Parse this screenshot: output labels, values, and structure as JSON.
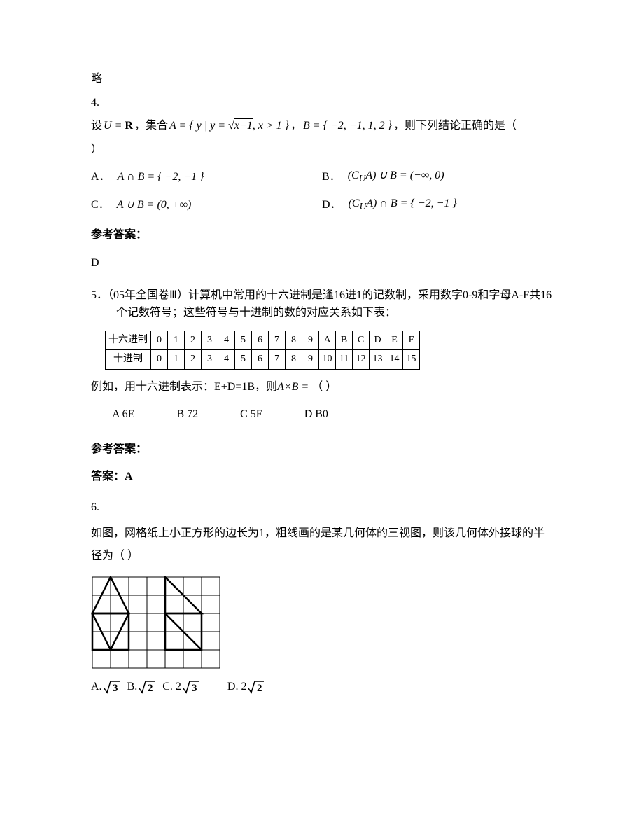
{
  "q3answer": "略",
  "q4": {
    "num": "4.",
    "setup_pre": "设",
    "setup_UR": "U = R",
    "setup_mid": "，集合",
    "setup_A": "A = { y | y = √(x−1), x > 1 }",
    "setup_comma": "，",
    "setup_B": "B = { −2, −1, 1, 2 }",
    "setup_post": "，则下列结论正确的是（",
    "setup_close": "）",
    "optA_label": "A．",
    "optA_text": "A ∩ B = { −2, −1 }",
    "optB_label": "B．",
    "optB_text": "(CᵤA) ∪ B = (−∞, 0)",
    "optC_label": "C．",
    "optC_text": "A ∪ B = (0, +∞)",
    "optD_label": "D．",
    "optD_text": "(CᵤA) ∩ B = { −2, −1 }",
    "ref": "参考答案：",
    "ans": "D"
  },
  "q5": {
    "num": "5．",
    "text1": "（05年全国卷Ⅲ）计算机中常用的十六进制是逢16进1的记数制，采用数字0-9和字母A-F共16个记数符号；这些符号与十进制的数的对应关系如下表：",
    "row1_label": "十六进制",
    "row2_label": "十进制",
    "hex": [
      "0",
      "1",
      "2",
      "3",
      "4",
      "5",
      "6",
      "7",
      "8",
      "9",
      "A",
      "B",
      "C",
      "D",
      "E",
      "F"
    ],
    "dec": [
      "0",
      "1",
      "2",
      "3",
      "4",
      "5",
      "6",
      "7",
      "8",
      "9",
      "10",
      "11",
      "12",
      "13",
      "14",
      "15"
    ],
    "text2_pre": "例如，用十六进制表示：E+D=1B，则",
    "text2_formula": "A×B =",
    "text2_post": "（     ）",
    "optA": "A  6E",
    "optB": "B  72",
    "optC": "C  5F",
    "optD": "D  B0",
    "ref": "参考答案：",
    "ans": "答案：A"
  },
  "q6": {
    "num": "6.",
    "text": "如图，网格纸上小正方形的边长为1，粗线画的是某几何体的三视图，则该几何体外接球的半径为（          ）",
    "optA_label": "A.",
    "optA_val": "√3",
    "optB_label": "B.",
    "optB_val": "√2",
    "optC_label": "C. 2",
    "optC_val": "√3",
    "optD_label": "D. 2",
    "optD_val": "√2"
  },
  "grid": {
    "cols": 7,
    "rows": 5,
    "cell": 26,
    "thin_color": "#000000",
    "thin_width": 1,
    "thick_color": "#000000",
    "thick_width": 2.5
  }
}
